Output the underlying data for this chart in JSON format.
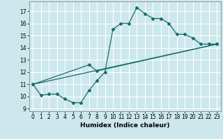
{
  "title": "",
  "xlabel": "Humidex (Indice chaleur)",
  "xlim": [
    -0.5,
    23.5
  ],
  "ylim": [
    8.8,
    17.8
  ],
  "yticks": [
    9,
    10,
    11,
    12,
    13,
    14,
    15,
    16,
    17
  ],
  "xticks": [
    0,
    1,
    2,
    3,
    4,
    5,
    6,
    7,
    8,
    9,
    10,
    11,
    12,
    13,
    14,
    15,
    16,
    17,
    18,
    19,
    20,
    21,
    22,
    23
  ],
  "bg_color": "#cce8ec",
  "grid_color": "#ffffff",
  "line_color": "#1a6b6b",
  "line1_x": [
    0,
    1,
    2,
    3,
    4,
    5,
    6,
    7,
    8,
    9,
    10,
    11,
    12,
    13,
    14,
    15,
    16,
    17,
    18,
    19,
    20,
    21,
    22,
    23
  ],
  "line1_y": [
    11.0,
    10.1,
    10.2,
    10.2,
    9.8,
    9.5,
    9.5,
    10.5,
    11.3,
    12.0,
    15.5,
    16.0,
    16.0,
    17.3,
    16.8,
    16.4,
    16.4,
    16.0,
    15.1,
    15.1,
    14.8,
    14.3,
    14.3,
    14.3
  ],
  "line2_x": [
    0,
    7,
    8,
    23
  ],
  "line2_y": [
    11.0,
    12.6,
    12.1,
    14.3
  ],
  "line3_x": [
    0,
    23
  ],
  "line3_y": [
    11.0,
    14.3
  ]
}
